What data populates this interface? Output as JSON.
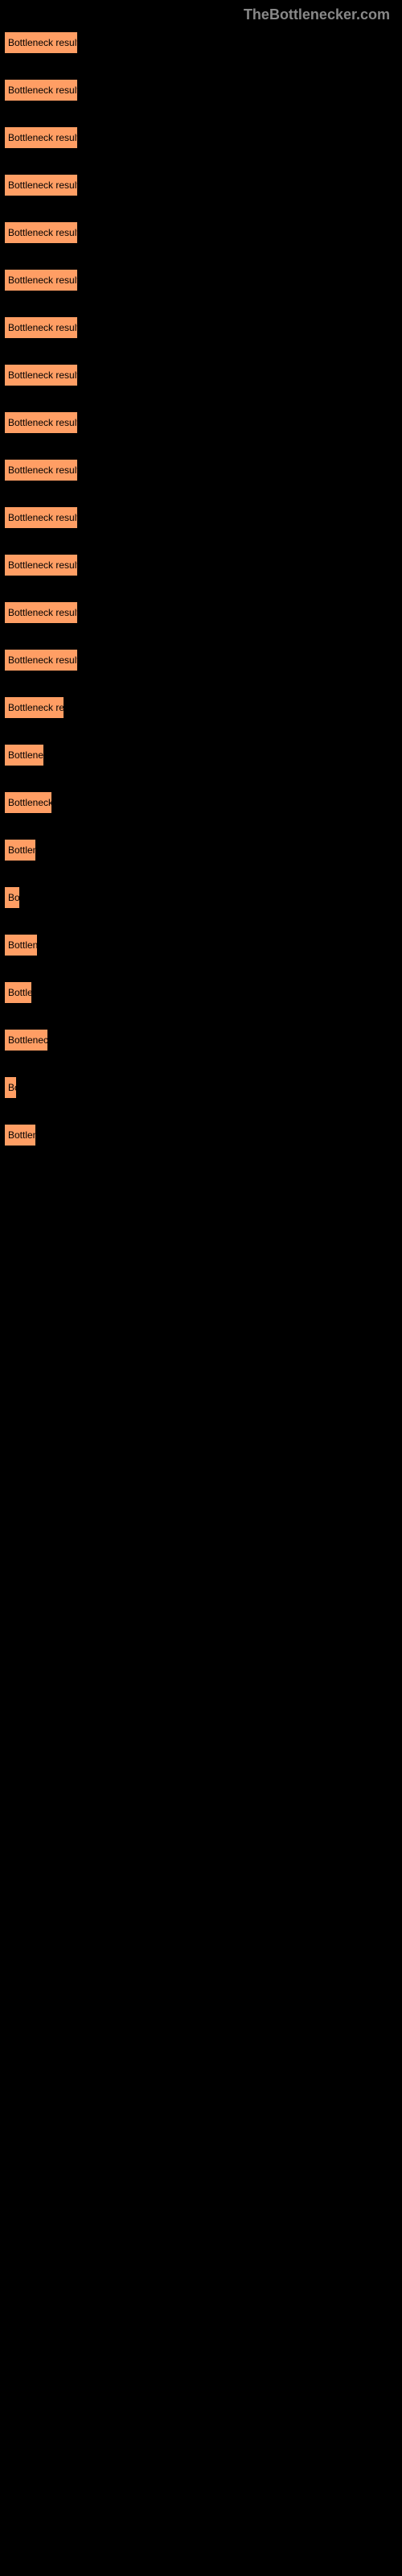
{
  "header": {
    "title": "TheBottlenecker.com"
  },
  "chart": {
    "type": "bar",
    "bar_color": "#ff9e64",
    "background_color": "#000000",
    "text_color": "#000000",
    "header_color": "#888888",
    "bar_label": "Bottleneck result",
    "bars": [
      {
        "width": 92
      },
      {
        "width": 92
      },
      {
        "width": 92
      },
      {
        "width": 92
      },
      {
        "width": 92
      },
      {
        "width": 92
      },
      {
        "width": 92
      },
      {
        "width": 92
      },
      {
        "width": 92
      },
      {
        "width": 92
      },
      {
        "width": 92
      },
      {
        "width": 92
      },
      {
        "width": 92
      },
      {
        "width": 92
      },
      {
        "width": 75
      },
      {
        "width": 50
      },
      {
        "width": 60
      },
      {
        "width": 40
      },
      {
        "width": 20
      },
      {
        "width": 42
      },
      {
        "width": 35
      },
      {
        "width": 55
      },
      {
        "width": 16
      },
      {
        "width": 40
      }
    ]
  }
}
